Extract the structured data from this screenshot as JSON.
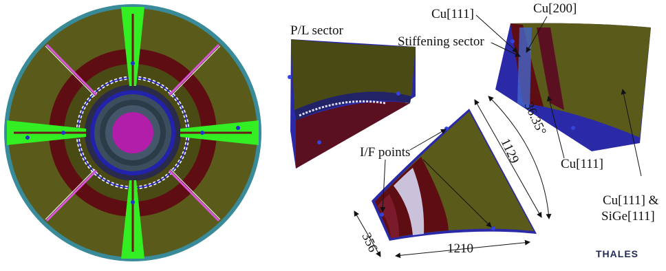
{
  "labels": {
    "pl_sector": "P/L sector",
    "cu111_top": "Cu[111]",
    "cu200": "Cu[200]",
    "stiffening_sector": "Stiffening sector",
    "if_points": "I/F points",
    "cu111_mid": "Cu[111]",
    "cu111_sige_line1": "Cu[111] &",
    "cu111_sige_line2": "SiGe[111]"
  },
  "dimensions": {
    "angle": "36.35°",
    "radial_length": "1129",
    "arc_length": "1210",
    "inner_width": "356"
  },
  "logo": "THALES",
  "colors": {
    "olive": "#5a5a1a",
    "dark_red": "#5e0e12",
    "green": "#33ee22",
    "magenta": "#cc33cc",
    "blue": "#2222cc",
    "teal_rim": "#3a8b9a"
  }
}
